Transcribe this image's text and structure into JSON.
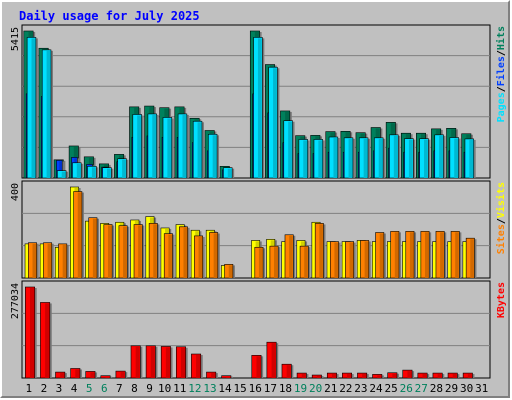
{
  "title": "Daily usage for July 2025",
  "colors": {
    "hits": "#00805c",
    "files": "#0040ff",
    "pages": "#00e0ff",
    "visits": "#ffff00",
    "sites": "#ff8000",
    "kbytes": "#ff0000",
    "weekend_label": "#00805c",
    "weekday_label": "#000080"
  },
  "chart_data": [
    {
      "type": "bar",
      "name": "hits-files-pages",
      "ymax_label": "5415",
      "ylim": [
        0,
        5415
      ],
      "legend": [
        {
          "label": "Pages",
          "color": "#00e0ff"
        },
        {
          "label": "Files",
          "color": "#0040ff"
        },
        {
          "label": "Hits",
          "color": "#00805c"
        }
      ],
      "legend_sep": "/",
      "series": [
        {
          "name": "Hits",
          "values": [
            5415,
            4780,
            670,
            1180,
            780,
            520,
            870,
            2620,
            2650,
            2590,
            2620,
            2200,
            1750,
            430,
            0,
            5415,
            4180,
            2470,
            1560,
            1570,
            1710,
            1720,
            1670,
            1860,
            2050,
            1650,
            1650,
            1810,
            1830,
            1630,
            0
          ]
        },
        {
          "name": "Files",
          "values": [
            3100,
            3000,
            650,
            760,
            500,
            400,
            600,
            1500,
            1550,
            1500,
            1500,
            1300,
            1000,
            300,
            0,
            3100,
            2400,
            1300,
            900,
            900,
            950,
            950,
            950,
            1000,
            1100,
            950,
            950,
            1000,
            1000,
            950,
            0
          ]
        },
        {
          "name": "Pages",
          "values": [
            5180,
            4720,
            270,
            560,
            430,
            380,
            710,
            2340,
            2360,
            2230,
            2360,
            2090,
            1610,
            380,
            0,
            5180,
            4080,
            2110,
            1420,
            1420,
            1510,
            1480,
            1480,
            1480,
            1590,
            1450,
            1450,
            1590,
            1490,
            1440,
            0
          ]
        }
      ]
    },
    {
      "type": "bar",
      "name": "visits-sites",
      "ymax_label": "400",
      "ylim": [
        0,
        400
      ],
      "legend": [
        {
          "label": "Sites",
          "color": "#ff8000"
        },
        {
          "label": "Visits",
          "color": "#ffff00"
        }
      ],
      "legend_sep": "/",
      "series": [
        {
          "name": "Visits",
          "values": [
            150,
            150,
            135,
            400,
            250,
            240,
            245,
            255,
            270,
            220,
            235,
            210,
            210,
            55,
            0,
            165,
            170,
            160,
            165,
            245,
            160,
            160,
            165,
            160,
            160,
            160,
            160,
            160,
            160,
            160,
            0
          ]
        },
        {
          "name": "Sites",
          "values": [
            155,
            155,
            150,
            380,
            265,
            235,
            230,
            235,
            240,
            195,
            225,
            185,
            200,
            60,
            0,
            135,
            140,
            190,
            140,
            240,
            160,
            160,
            165,
            200,
            205,
            205,
            205,
            205,
            205,
            175,
            0
          ]
        }
      ]
    },
    {
      "type": "bar",
      "name": "kbytes",
      "ymax_label": "277034",
      "ylim": [
        0,
        277034
      ],
      "legend": [
        {
          "label": "KBytes",
          "color": "#ff0000"
        }
      ],
      "series": [
        {
          "name": "KBytes",
          "values": [
            277034,
            230000,
            18000,
            29000,
            20000,
            7000,
            21000,
            98000,
            98000,
            96000,
            95000,
            73000,
            18000,
            7000,
            0,
            69000,
            109000,
            42000,
            15000,
            9000,
            15000,
            15000,
            15000,
            11000,
            16000,
            24000,
            15000,
            15000,
            15000,
            15000,
            0
          ]
        }
      ]
    }
  ],
  "days": [
    "1",
    "2",
    "3",
    "4",
    "5",
    "6",
    "7",
    "8",
    "9",
    "10",
    "11",
    "12",
    "13",
    "14",
    "15",
    "16",
    "17",
    "18",
    "19",
    "20",
    "21",
    "22",
    "23",
    "24",
    "25",
    "26",
    "27",
    "28",
    "29",
    "30",
    "31"
  ],
  "weekend_days": [
    "5",
    "6",
    "12",
    "13",
    "19",
    "20",
    "26",
    "27"
  ]
}
